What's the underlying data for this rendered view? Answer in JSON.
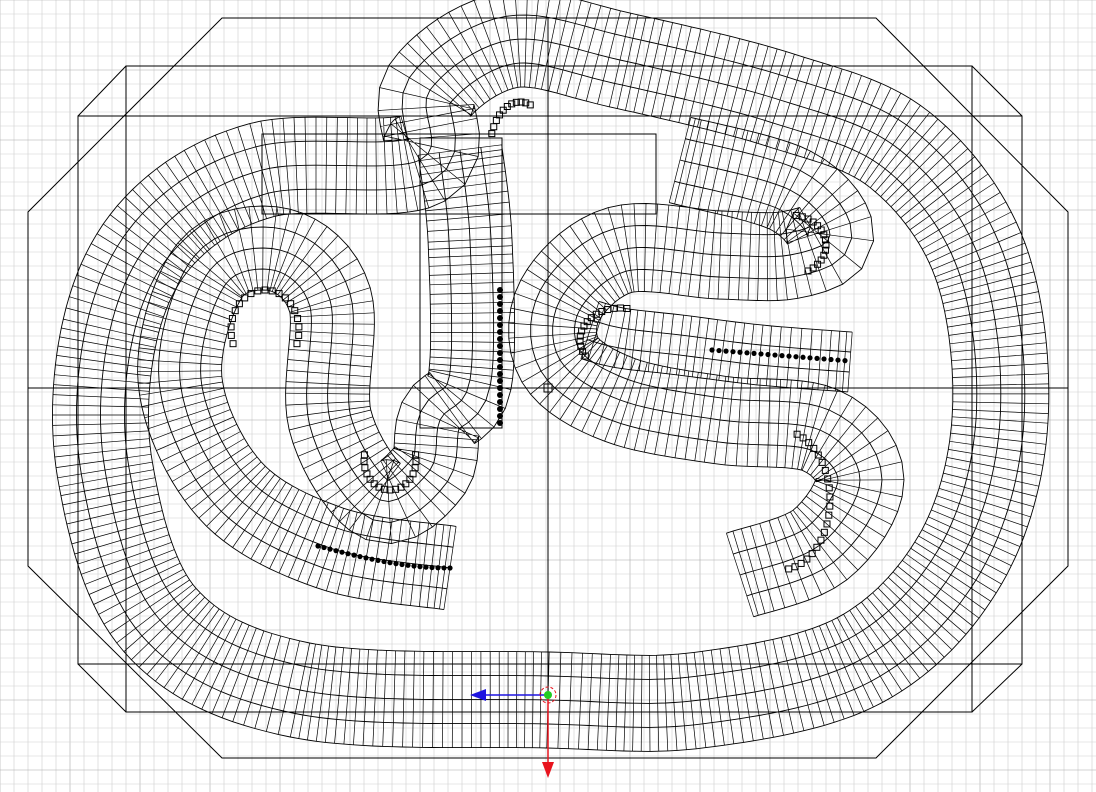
{
  "viewport": {
    "view": "top",
    "mode": "wireframe",
    "grid": true,
    "colors": {
      "background": "#ffffff",
      "grid_minor": "#cfcfcf",
      "grid_major": "#a8a8a8",
      "wire": "#000000",
      "axis_x": "#e8141e",
      "axis_y": "#1e14e0",
      "pivot": "#22cc22"
    },
    "gizmo": {
      "type": "move",
      "axes": [
        "x-axis",
        "y-axis"
      ]
    },
    "object": {
      "type": "race-track-mesh",
      "pieces": [
        "outer-loop",
        "inner-chicane",
        "cones",
        "barriers"
      ]
    }
  }
}
